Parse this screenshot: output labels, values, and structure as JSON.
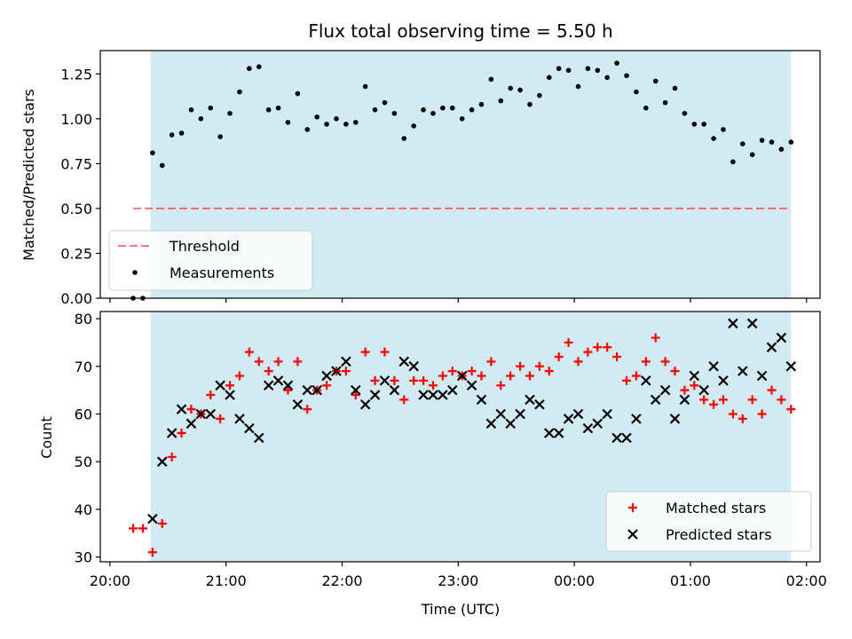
{
  "chart_data": [
    {
      "type": "scatter",
      "title": "Flux total observing time = 5.50 h",
      "xlabel": "",
      "ylabel": "Matched/Predicted stars",
      "ylim": [
        0,
        1.38
      ],
      "yticks": [
        "0.00",
        "0.25",
        "0.50",
        "0.75",
        "1.00",
        "1.25"
      ],
      "shaded_span": {
        "start": "20:21",
        "end": "01:52",
        "color": "#add8e6"
      },
      "threshold": {
        "name": "Threshold",
        "value": 0.5,
        "start": "20:12",
        "end": "01:52",
        "color": "#ff0000"
      },
      "legend": {
        "position": "lower-left",
        "entries": [
          "Threshold",
          "Measurements"
        ]
      },
      "series": [
        {
          "name": "Measurements",
          "color": "#000000",
          "marker": "dot",
          "points": [
            [
              "20:12",
              0.0
            ],
            [
              "20:17",
              0.0
            ],
            [
              "20:22",
              0.81
            ],
            [
              "20:27",
              0.74
            ],
            [
              "20:32",
              0.91
            ],
            [
              "20:37",
              0.92
            ],
            [
              "20:42",
              1.05
            ],
            [
              "20:47",
              1.0
            ],
            [
              "20:52",
              1.06
            ],
            [
              "20:57",
              0.9
            ],
            [
              "21:02",
              1.03
            ],
            [
              "21:07",
              1.15
            ],
            [
              "21:12",
              1.28
            ],
            [
              "21:17",
              1.29
            ],
            [
              "21:22",
              1.05
            ],
            [
              "21:27",
              1.06
            ],
            [
              "21:32",
              0.98
            ],
            [
              "21:37",
              1.14
            ],
            [
              "21:42",
              0.94
            ],
            [
              "21:47",
              1.01
            ],
            [
              "21:52",
              0.97
            ],
            [
              "21:57",
              1.0
            ],
            [
              "22:02",
              0.97
            ],
            [
              "22:07",
              0.98
            ],
            [
              "22:12",
              1.18
            ],
            [
              "22:17",
              1.05
            ],
            [
              "22:22",
              1.09
            ],
            [
              "22:27",
              1.03
            ],
            [
              "22:32",
              0.89
            ],
            [
              "22:37",
              0.96
            ],
            [
              "22:42",
              1.05
            ],
            [
              "22:47",
              1.03
            ],
            [
              "22:52",
              1.06
            ],
            [
              "22:57",
              1.06
            ],
            [
              "23:02",
              1.0
            ],
            [
              "23:07",
              1.05
            ],
            [
              "23:12",
              1.08
            ],
            [
              "23:17",
              1.22
            ],
            [
              "23:22",
              1.1
            ],
            [
              "23:27",
              1.17
            ],
            [
              "23:32",
              1.16
            ],
            [
              "23:37",
              1.08
            ],
            [
              "23:42",
              1.13
            ],
            [
              "23:47",
              1.23
            ],
            [
              "23:52",
              1.28
            ],
            [
              "23:57",
              1.27
            ],
            [
              "00:02",
              1.18
            ],
            [
              "00:07",
              1.28
            ],
            [
              "00:12",
              1.27
            ],
            [
              "00:17",
              1.23
            ],
            [
              "00:22",
              1.31
            ],
            [
              "00:27",
              1.24
            ],
            [
              "00:32",
              1.15
            ],
            [
              "00:37",
              1.06
            ],
            [
              "00:42",
              1.21
            ],
            [
              "00:47",
              1.09
            ],
            [
              "00:52",
              1.17
            ],
            [
              "00:57",
              1.03
            ],
            [
              "01:02",
              0.97
            ],
            [
              "01:07",
              0.97
            ],
            [
              "01:12",
              0.89
            ],
            [
              "01:17",
              0.94
            ],
            [
              "01:22",
              0.76
            ],
            [
              "01:27",
              0.86
            ],
            [
              "01:32",
              0.8
            ],
            [
              "01:37",
              0.88
            ],
            [
              "01:42",
              0.87
            ],
            [
              "01:47",
              0.83
            ],
            [
              "01:52",
              0.87
            ]
          ]
        }
      ]
    },
    {
      "type": "scatter",
      "title": "",
      "xlabel": "Time (UTC)",
      "ylabel": "Count",
      "ylim": [
        29,
        81.5
      ],
      "yticks": [
        "30",
        "40",
        "50",
        "60",
        "70",
        "80"
      ],
      "xticks": [
        "20:00",
        "21:00",
        "22:00",
        "23:00",
        "00:00",
        "01:00",
        "02:00"
      ],
      "shaded_span": {
        "start": "20:21",
        "end": "01:52",
        "color": "#add8e6"
      },
      "legend": {
        "position": "lower-right",
        "entries": [
          "Matched stars",
          "Predicted stars"
        ]
      },
      "series": [
        {
          "name": "Matched stars",
          "color": "#ff0000",
          "marker": "plus",
          "points": [
            [
              "20:12",
              36
            ],
            [
              "20:17",
              36
            ],
            [
              "20:22",
              31
            ],
            [
              "20:27",
              37
            ],
            [
              "20:32",
              51
            ],
            [
              "20:37",
              56
            ],
            [
              "20:42",
              61
            ],
            [
              "20:47",
              60
            ],
            [
              "20:52",
              64
            ],
            [
              "20:57",
              59
            ],
            [
              "21:02",
              66
            ],
            [
              "21:07",
              68
            ],
            [
              "21:12",
              73
            ],
            [
              "21:17",
              71
            ],
            [
              "21:22",
              69
            ],
            [
              "21:27",
              71
            ],
            [
              "21:32",
              65
            ],
            [
              "21:37",
              71
            ],
            [
              "21:42",
              61
            ],
            [
              "21:47",
              65
            ],
            [
              "21:52",
              66
            ],
            [
              "21:57",
              69
            ],
            [
              "22:02",
              69
            ],
            [
              "22:07",
              64
            ],
            [
              "22:12",
              73
            ],
            [
              "22:17",
              67
            ],
            [
              "22:22",
              73
            ],
            [
              "22:27",
              67
            ],
            [
              "22:32",
              63
            ],
            [
              "22:37",
              67
            ],
            [
              "22:42",
              67
            ],
            [
              "22:47",
              66
            ],
            [
              "22:52",
              68
            ],
            [
              "22:57",
              69
            ],
            [
              "23:02",
              68
            ],
            [
              "23:07",
              69
            ],
            [
              "23:12",
              68
            ],
            [
              "23:17",
              71
            ],
            [
              "23:22",
              66
            ],
            [
              "23:27",
              68
            ],
            [
              "23:32",
              70
            ],
            [
              "23:37",
              68
            ],
            [
              "23:42",
              70
            ],
            [
              "23:47",
              69
            ],
            [
              "23:52",
              72
            ],
            [
              "23:57",
              75
            ],
            [
              "00:02",
              71
            ],
            [
              "00:07",
              73
            ],
            [
              "00:12",
              74
            ],
            [
              "00:17",
              74
            ],
            [
              "00:22",
              72
            ],
            [
              "00:27",
              67
            ],
            [
              "00:32",
              68
            ],
            [
              "00:37",
              71
            ],
            [
              "00:42",
              76
            ],
            [
              "00:47",
              71
            ],
            [
              "00:52",
              69
            ],
            [
              "00:57",
              65
            ],
            [
              "01:02",
              66
            ],
            [
              "01:07",
              63
            ],
            [
              "01:12",
              62
            ],
            [
              "01:17",
              63
            ],
            [
              "01:22",
              60
            ],
            [
              "01:27",
              59
            ],
            [
              "01:32",
              63
            ],
            [
              "01:37",
              60
            ],
            [
              "01:42",
              65
            ],
            [
              "01:47",
              63
            ],
            [
              "01:52",
              61
            ]
          ]
        },
        {
          "name": "Predicted stars",
          "color": "#000000",
          "marker": "x",
          "points": [
            [
              "20:22",
              38
            ],
            [
              "20:27",
              50
            ],
            [
              "20:32",
              56
            ],
            [
              "20:37",
              61
            ],
            [
              "20:42",
              58
            ],
            [
              "20:47",
              60
            ],
            [
              "20:52",
              60
            ],
            [
              "20:57",
              66
            ],
            [
              "21:02",
              64
            ],
            [
              "21:07",
              59
            ],
            [
              "21:12",
              57
            ],
            [
              "21:17",
              55
            ],
            [
              "21:22",
              66
            ],
            [
              "21:27",
              67
            ],
            [
              "21:32",
              66
            ],
            [
              "21:37",
              62
            ],
            [
              "21:42",
              65
            ],
            [
              "21:47",
              65
            ],
            [
              "21:52",
              68
            ],
            [
              "21:57",
              69
            ],
            [
              "22:02",
              71
            ],
            [
              "22:07",
              65
            ],
            [
              "22:12",
              62
            ],
            [
              "22:17",
              64
            ],
            [
              "22:22",
              67
            ],
            [
              "22:27",
              65
            ],
            [
              "22:32",
              71
            ],
            [
              "22:37",
              70
            ],
            [
              "22:42",
              64
            ],
            [
              "22:47",
              64
            ],
            [
              "22:52",
              64
            ],
            [
              "22:57",
              65
            ],
            [
              "23:02",
              68
            ],
            [
              "23:07",
              66
            ],
            [
              "23:12",
              63
            ],
            [
              "23:17",
              58
            ],
            [
              "23:22",
              60
            ],
            [
              "23:27",
              58
            ],
            [
              "23:32",
              60
            ],
            [
              "23:37",
              63
            ],
            [
              "23:42",
              62
            ],
            [
              "23:47",
              56
            ],
            [
              "23:52",
              56
            ],
            [
              "23:57",
              59
            ],
            [
              "00:02",
              60
            ],
            [
              "00:07",
              57
            ],
            [
              "00:12",
              58
            ],
            [
              "00:17",
              60
            ],
            [
              "00:22",
              55
            ],
            [
              "00:27",
              55
            ],
            [
              "00:32",
              59
            ],
            [
              "00:37",
              67
            ],
            [
              "00:42",
              63
            ],
            [
              "00:47",
              65
            ],
            [
              "00:52",
              59
            ],
            [
              "00:57",
              63
            ],
            [
              "01:02",
              68
            ],
            [
              "01:07",
              65
            ],
            [
              "01:12",
              70
            ],
            [
              "01:17",
              67
            ],
            [
              "01:22",
              79
            ],
            [
              "01:27",
              69
            ],
            [
              "01:32",
              79
            ],
            [
              "01:37",
              68
            ],
            [
              "01:42",
              74
            ],
            [
              "01:47",
              76
            ],
            [
              "01:52",
              70
            ]
          ]
        }
      ]
    }
  ]
}
